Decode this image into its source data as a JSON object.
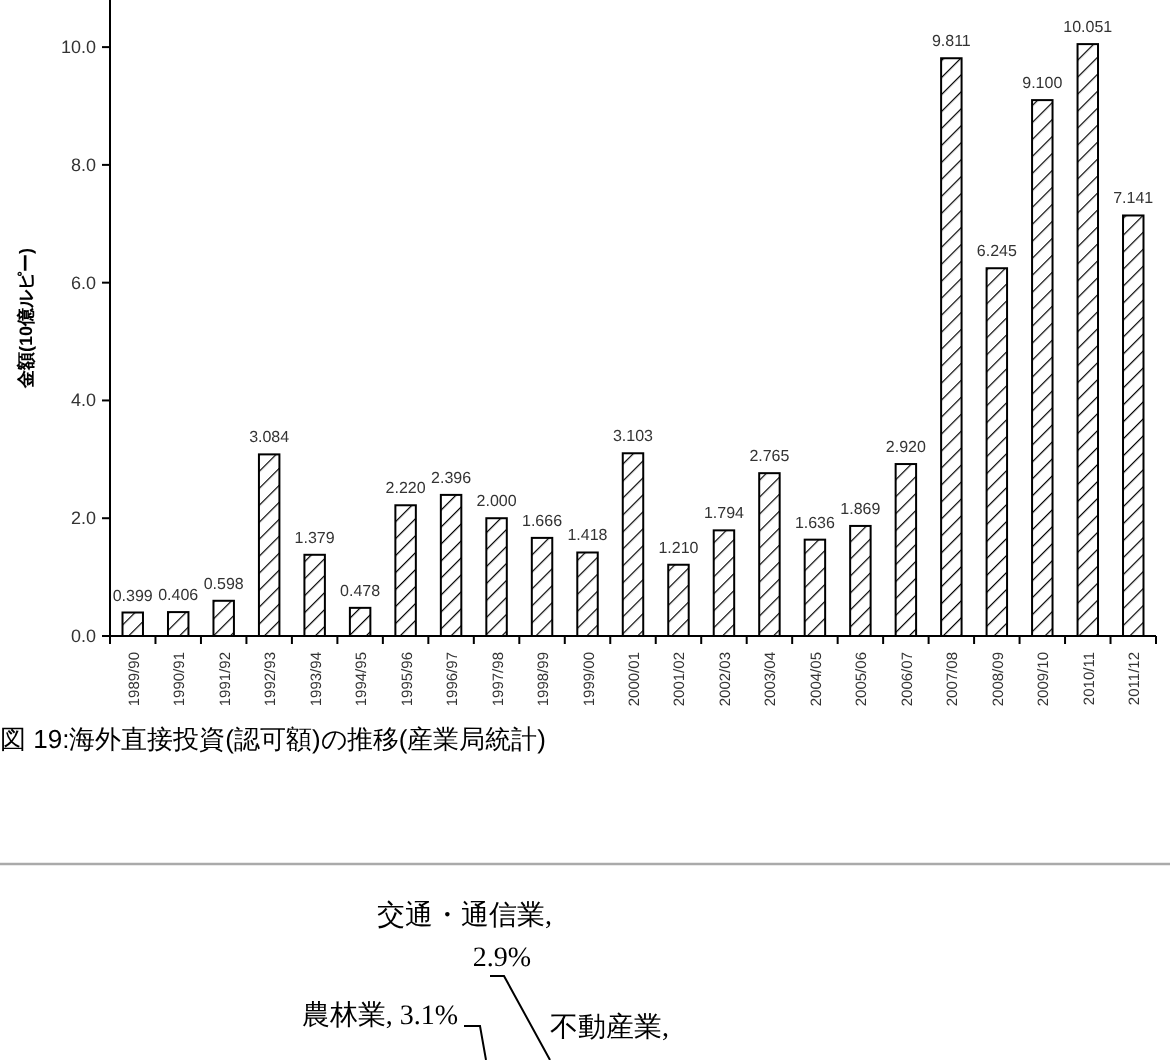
{
  "chart_data": [
    {
      "type": "bar",
      "ylabel": "金額(10億ルピー)",
      "categories": [
        "1989/90",
        "1990/91",
        "1991/92",
        "1992/93",
        "1993/94",
        "1994/95",
        "1995/96",
        "1996/97",
        "1997/98",
        "1998/99",
        "1999/00",
        "2000/01",
        "2001/02",
        "2002/03",
        "2003/04",
        "2004/05",
        "2005/06",
        "2006/07",
        "2007/08",
        "2008/09",
        "2009/10",
        "2010/11",
        "2011/12"
      ],
      "values": [
        0.399,
        0.406,
        0.598,
        3.084,
        1.379,
        0.478,
        2.22,
        2.396,
        2.0,
        1.666,
        1.418,
        3.103,
        1.21,
        1.794,
        2.765,
        1.636,
        1.869,
        2.92,
        9.811,
        6.245,
        9.1,
        10.051,
        7.141
      ],
      "value_labels": [
        "0.399",
        "0.406",
        "0.598",
        "3.084",
        "1.379",
        "0.478",
        "2.220",
        "2.396",
        "2.000",
        "1.666",
        "1.418",
        "3.103",
        "1.210",
        "1.794",
        "2.765",
        "1.636",
        "1.869",
        "2.920",
        "9.811",
        "6.245",
        "9.100",
        "10.051",
        "7.141"
      ],
      "color": "#000000",
      "ylim": [
        0,
        10.8
      ],
      "yticks": [
        {
          "value": 0,
          "label": "0.0"
        },
        {
          "value": 2,
          "label": "2.0"
        },
        {
          "value": 4,
          "label": "4.0"
        },
        {
          "value": 6,
          "label": "6.0"
        },
        {
          "value": 8,
          "label": "8.0"
        },
        {
          "value": 10,
          "label": "10.0"
        }
      ],
      "grid": false,
      "annotations": [
        "図 19:海外直接投資(認可額)の推移(産業局統計)"
      ]
    },
    {
      "type": "other",
      "annotations": [
        "交通・通信業,\n2.9%",
        "農林業, 3.1%",
        "不動産業,"
      ]
    }
  ]
}
